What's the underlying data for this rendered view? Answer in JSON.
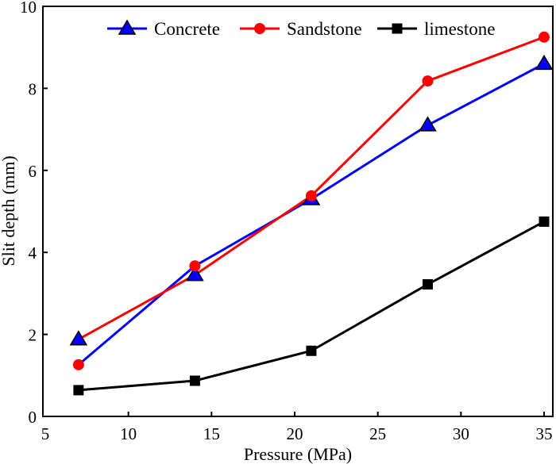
{
  "chart_data": {
    "type": "line",
    "title": "",
    "xlabel": "Pressure (MPa)",
    "ylabel": "Slit depth (mm)",
    "xlim": [
      5,
      36.5
    ],
    "ylim": [
      0,
      10
    ],
    "xticks": [
      5,
      10,
      15,
      20,
      25,
      30,
      35
    ],
    "yticks": [
      0,
      2,
      4,
      6,
      8,
      10
    ],
    "grid": false,
    "legend_position": "top",
    "x": [
      7,
      14,
      21,
      28,
      35
    ],
    "series": [
      {
        "name": "Concrete",
        "color": "#0000ff",
        "marker": "triangle",
        "values": [
          1.88,
          3.45,
          5.3,
          7.1,
          8.6
        ],
        "line_values": [
          1.26,
          3.67,
          5.3,
          7.1,
          8.6
        ]
      },
      {
        "name": "Sandstone",
        "color": "#ff0000",
        "marker": "circle",
        "values": [
          1.26,
          3.67,
          5.38,
          8.18,
          9.25
        ],
        "line_values": [
          1.88,
          3.45,
          5.38,
          8.18,
          9.25
        ]
      },
      {
        "name": "limestone",
        "color": "#000000",
        "marker": "square",
        "values": [
          0.64,
          0.87,
          1.6,
          3.22,
          4.75
        ],
        "line_values": [
          0.64,
          0.87,
          1.6,
          3.22,
          4.75
        ]
      }
    ]
  }
}
